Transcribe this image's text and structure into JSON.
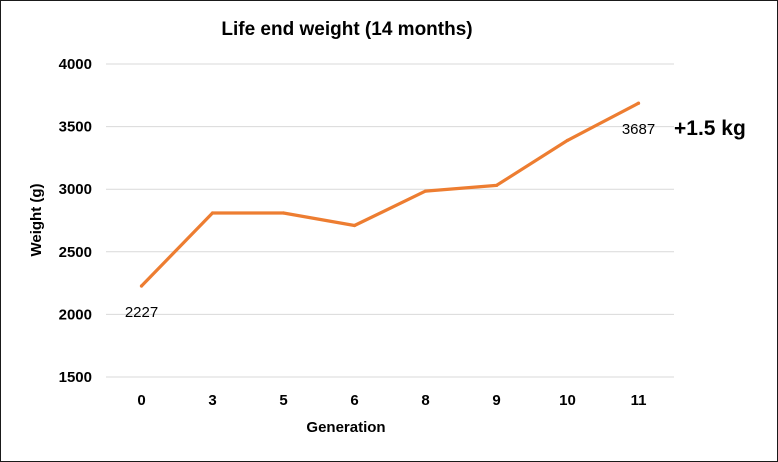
{
  "chart_data": {
    "type": "line",
    "title": "Life end weight (14 months)",
    "xlabel": "Generation",
    "ylabel": "Weight (g)",
    "categories": [
      "0",
      "3",
      "5",
      "6",
      "8",
      "9",
      "10",
      "11"
    ],
    "series": [
      {
        "values": [
          2227,
          2810,
          2810,
          2710,
          2985,
          3030,
          3390,
          3687
        ],
        "color": "#ED7D31"
      }
    ],
    "ylim": [
      1500,
      4000
    ],
    "yticks": [
      "1500",
      "2000",
      "2500",
      "3000",
      "3500",
      "4000"
    ],
    "grid": true,
    "data_labels": [
      {
        "index": 0,
        "text": "2227"
      },
      {
        "index": 7,
        "text": "3687"
      }
    ],
    "annotation": "+1.5 kg"
  }
}
